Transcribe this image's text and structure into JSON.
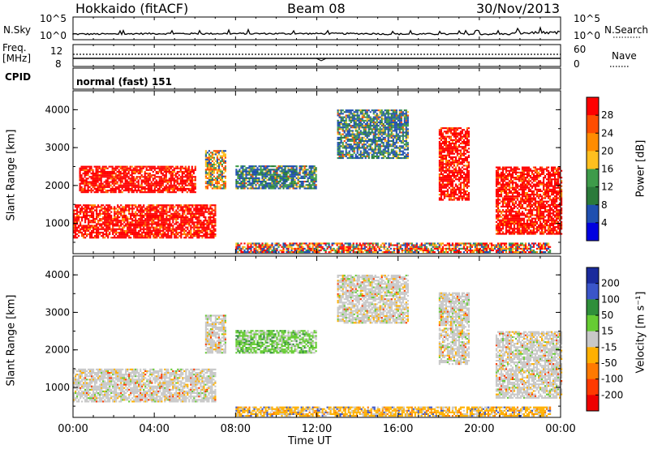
{
  "header": {
    "station": "Hokkaido (fitACF)",
    "beam": "Beam 08",
    "date": "30/Nov/2013"
  },
  "noise_panel": {
    "left_label": "N.Sky",
    "right_label": "N.Search",
    "left_ticks": [
      "10^5",
      "10^0"
    ],
    "right_ticks": [
      "10^5",
      "10^0"
    ]
  },
  "freq_panel": {
    "left_label_1": "Freq.",
    "left_label_2": "[MHz]",
    "right_label": "Nave",
    "left_ticks": [
      "12",
      "8"
    ],
    "right_ticks": [
      "60",
      "0"
    ]
  },
  "cpid_panel": {
    "label": "CPID",
    "text": "normal (fast) 151"
  },
  "chart_data": [
    {
      "type": "heatmap",
      "name": "power",
      "ylabel": "Slant Range [km]",
      "ylim": [
        200,
        4500
      ],
      "yticks": [
        "4000",
        "3000",
        "2000",
        "1000"
      ],
      "xlim": [
        "00:00",
        "24:00"
      ],
      "colorbar": {
        "label": "Power [dB]",
        "ticks": [
          "28",
          "24",
          "20",
          "16",
          "12",
          "8",
          "4"
        ],
        "colors": [
          "#ff0000",
          "#ff4d00",
          "#ff8c00",
          "#ffbf1f",
          "#3e9b4a",
          "#2a7a3a",
          "#1f4fb0",
          "#0000e0"
        ]
      },
      "regions": [
        {
          "t": [
            0.0,
            7.0
          ],
          "r": [
            600,
            1500
          ],
          "level": "high"
        },
        {
          "t": [
            0.3,
            6.0
          ],
          "r": [
            1800,
            2500
          ],
          "level": "high"
        },
        {
          "t": [
            6.5,
            7.5
          ],
          "r": [
            1900,
            2900
          ],
          "level": "mid"
        },
        {
          "t": [
            8.0,
            12.0
          ],
          "r": [
            1900,
            2500
          ],
          "level": "low-mid"
        },
        {
          "t": [
            13.0,
            16.5
          ],
          "r": [
            2700,
            4000
          ],
          "level": "low-mid"
        },
        {
          "t": [
            18.0,
            19.5
          ],
          "r": [
            1600,
            3500
          ],
          "level": "high"
        },
        {
          "t": [
            20.8,
            24.0
          ],
          "r": [
            700,
            2500
          ],
          "level": "high"
        },
        {
          "t": [
            8.0,
            23.5
          ],
          "r": [
            220,
            450
          ],
          "level": "mixed"
        }
      ]
    },
    {
      "type": "heatmap",
      "name": "velocity",
      "ylabel": "Slant Range [km]",
      "ylim": [
        200,
        4500
      ],
      "yticks": [
        "4000",
        "3000",
        "2000",
        "1000"
      ],
      "xlim": [
        "00:00",
        "24:00"
      ],
      "colorbar": {
        "label": "Velocity [m s⁻¹]",
        "ticks": [
          "200",
          "100",
          "50",
          "15",
          "-15",
          "-50",
          "-100",
          "-200"
        ],
        "colors": [
          "#1a2a9c",
          "#3a55c9",
          "#2f8f3a",
          "#66cc33",
          "#c8c8c8",
          "#ffb000",
          "#ff7a00",
          "#ff3a00",
          "#ee0000"
        ]
      },
      "regions": [
        {
          "t": [
            0.0,
            7.0
          ],
          "r": [
            600,
            1500
          ],
          "level": "ground"
        },
        {
          "t": [
            6.5,
            7.5
          ],
          "r": [
            1900,
            2900
          ],
          "level": "ground"
        },
        {
          "t": [
            8.0,
            12.0
          ],
          "r": [
            1900,
            2500
          ],
          "level": "green"
        },
        {
          "t": [
            13.0,
            16.5
          ],
          "r": [
            2700,
            4000
          ],
          "level": "ground"
        },
        {
          "t": [
            18.0,
            19.5
          ],
          "r": [
            1600,
            3500
          ],
          "level": "ground"
        },
        {
          "t": [
            20.8,
            24.0
          ],
          "r": [
            700,
            2500
          ],
          "level": "ground"
        },
        {
          "t": [
            8.0,
            23.5
          ],
          "r": [
            220,
            450
          ],
          "level": "orange"
        }
      ]
    }
  ],
  "xaxis": {
    "ticks": [
      "00:00",
      "04:00",
      "08:00",
      "12:00",
      "16:00",
      "20:00",
      "00:00"
    ],
    "label": "Time UT"
  }
}
